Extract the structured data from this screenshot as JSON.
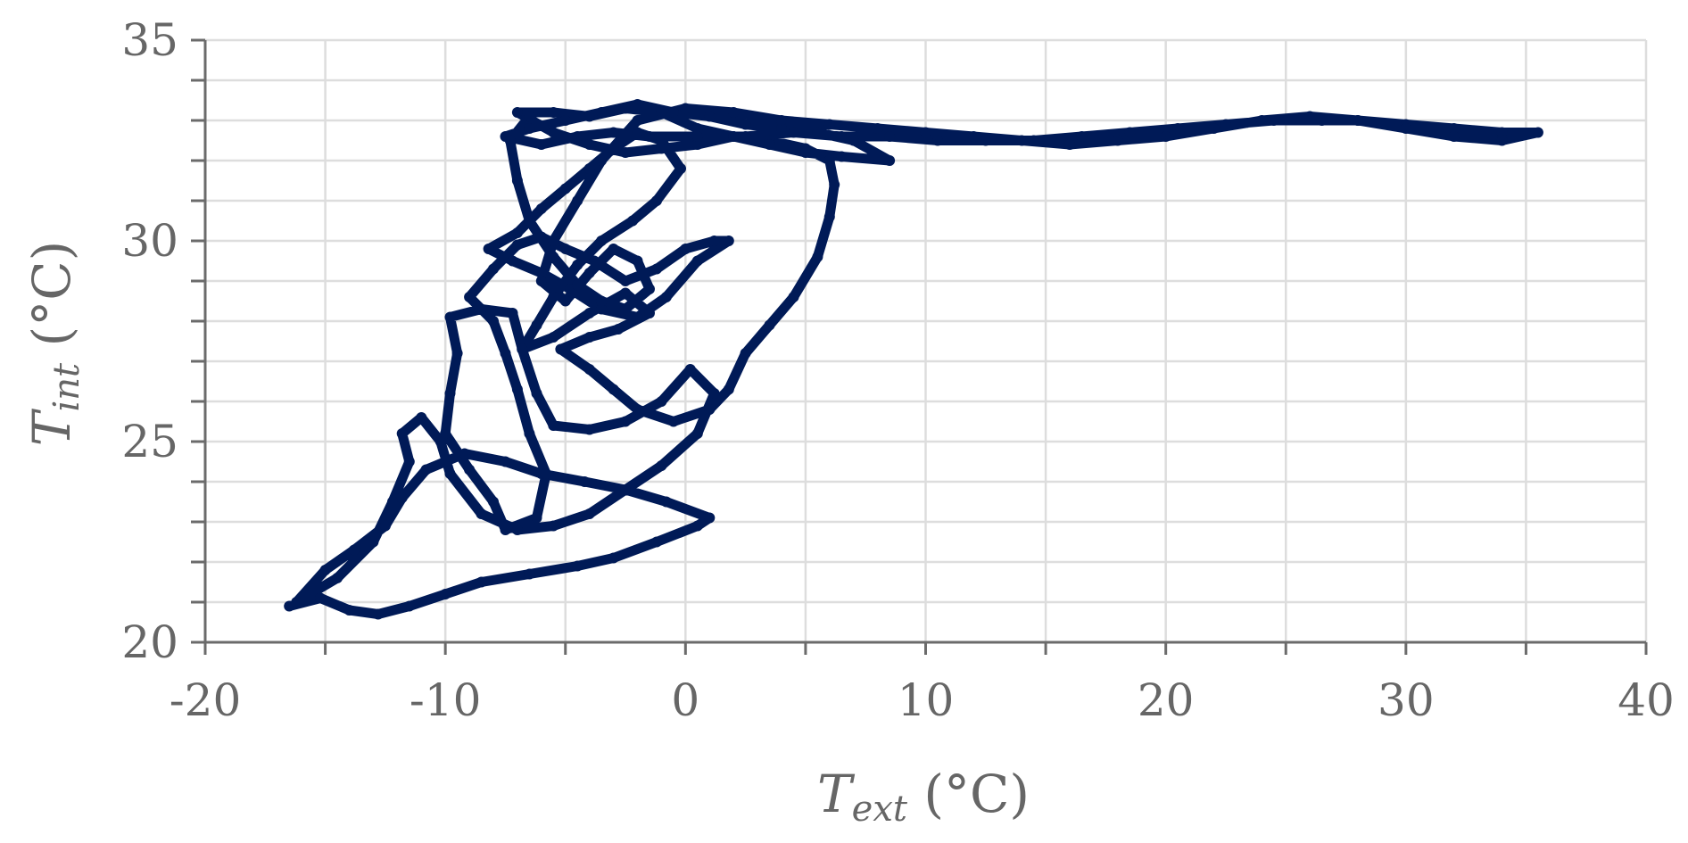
{
  "chart_data": {
    "type": "scatter",
    "xlabel": {
      "symbol": "T",
      "subscript": "ext",
      "unit": " (°C)"
    },
    "ylabel": {
      "symbol": "T",
      "subscript": "int",
      "unit": " (°C)"
    },
    "xlim": [
      -20,
      40
    ],
    "ylim": [
      20,
      35
    ],
    "x_ticks": [
      -20,
      -10,
      0,
      10,
      20,
      30,
      40
    ],
    "x_tick_labels": [
      "-20",
      "-10",
      "0",
      "10",
      "20",
      "30",
      "40"
    ],
    "y_ticks": [
      20,
      25,
      30,
      35
    ],
    "y_tick_labels": [
      "20",
      "25",
      "30",
      "35"
    ],
    "x_minor_step": 5,
    "y_minor_step": 1,
    "grid": true,
    "legend": "none",
    "colors": {
      "series": "#001a57",
      "grid": "#dddddd",
      "axis": "#6b6b6b",
      "text": "#666666"
    },
    "series": [
      {
        "points": [
          [
            -16.5,
            20.9
          ],
          [
            -15.2,
            21.1
          ],
          [
            -14.0,
            20.8
          ],
          [
            -12.8,
            20.7
          ],
          [
            -11.5,
            20.9
          ],
          [
            -10.0,
            21.2
          ],
          [
            -8.5,
            21.5
          ],
          [
            -6.5,
            21.7
          ],
          [
            -4.5,
            21.9
          ],
          [
            -3.0,
            22.1
          ],
          [
            -1.2,
            22.5
          ],
          [
            0.5,
            22.9
          ],
          [
            1.0,
            23.1
          ],
          [
            -0.8,
            23.5
          ],
          [
            -2.5,
            23.8
          ],
          [
            -4.2,
            24.0
          ],
          [
            -6.0,
            24.2
          ],
          [
            -7.5,
            24.5
          ],
          [
            -9.2,
            24.7
          ],
          [
            -10.8,
            24.3
          ],
          [
            -11.8,
            23.6
          ],
          [
            -12.5,
            22.9
          ],
          [
            -13.8,
            22.3
          ],
          [
            -15.0,
            21.8
          ],
          [
            -16.2,
            21.0
          ],
          [
            -14.5,
            21.6
          ],
          [
            -13.0,
            22.5
          ],
          [
            -12.2,
            23.5
          ],
          [
            -11.5,
            24.5
          ],
          [
            -11.8,
            25.2
          ],
          [
            -11.0,
            25.6
          ],
          [
            -10.2,
            25.0
          ],
          [
            -9.8,
            24.2
          ],
          [
            -8.5,
            23.2
          ],
          [
            -7.0,
            22.8
          ],
          [
            -5.5,
            22.9
          ],
          [
            -4.0,
            23.2
          ],
          [
            -2.5,
            23.8
          ],
          [
            -1.0,
            24.4
          ],
          [
            0.5,
            25.2
          ],
          [
            1.2,
            26.2
          ],
          [
            0.2,
            26.8
          ],
          [
            -1.0,
            26.0
          ],
          [
            -2.5,
            25.5
          ],
          [
            -4.0,
            25.3
          ],
          [
            -5.5,
            25.4
          ],
          [
            -6.2,
            26.2
          ],
          [
            -6.8,
            27.3
          ],
          [
            -7.2,
            28.2
          ],
          [
            -8.5,
            28.3
          ],
          [
            -9.8,
            28.1
          ],
          [
            -9.5,
            27.2
          ],
          [
            -9.8,
            26.2
          ],
          [
            -10.0,
            25.2
          ],
          [
            -9.0,
            24.3
          ],
          [
            -8.0,
            23.5
          ],
          [
            -7.5,
            22.8
          ],
          [
            -6.2,
            23.1
          ],
          [
            -5.8,
            24.2
          ],
          [
            -6.5,
            25.2
          ],
          [
            -7.0,
            26.3
          ],
          [
            -7.5,
            27.2
          ],
          [
            -8.0,
            28.0
          ],
          [
            -9.0,
            28.6
          ],
          [
            -8.0,
            29.3
          ],
          [
            -7.0,
            29.9
          ],
          [
            -6.0,
            30.1
          ],
          [
            -5.0,
            29.8
          ],
          [
            -3.8,
            29.5
          ],
          [
            -2.5,
            29.0
          ],
          [
            -1.2,
            29.3
          ],
          [
            0.0,
            29.8
          ],
          [
            1.2,
            30.0
          ],
          [
            1.8,
            30.0
          ],
          [
            0.5,
            29.5
          ],
          [
            -0.8,
            28.6
          ],
          [
            -2.0,
            28.1
          ],
          [
            -3.5,
            28.3
          ],
          [
            -4.8,
            28.8
          ],
          [
            -6.0,
            29.2
          ],
          [
            -7.2,
            29.5
          ],
          [
            -8.2,
            29.8
          ],
          [
            -7.0,
            30.2
          ],
          [
            -6.0,
            30.8
          ],
          [
            -5.0,
            31.3
          ],
          [
            -4.0,
            31.8
          ],
          [
            -3.0,
            32.3
          ],
          [
            -2.0,
            32.7
          ],
          [
            -1.0,
            32.5
          ],
          [
            -0.2,
            31.8
          ],
          [
            -1.2,
            31.0
          ],
          [
            -2.2,
            30.5
          ],
          [
            -3.5,
            30.0
          ],
          [
            -4.5,
            29.4
          ],
          [
            -5.5,
            28.6
          ],
          [
            -6.2,
            27.9
          ],
          [
            -6.8,
            27.3
          ],
          [
            -5.5,
            27.6
          ],
          [
            -4.0,
            28.2
          ],
          [
            -2.5,
            28.7
          ],
          [
            -1.5,
            28.2
          ],
          [
            -2.8,
            27.8
          ],
          [
            -4.0,
            27.6
          ],
          [
            -5.2,
            27.3
          ],
          [
            -4.0,
            26.8
          ],
          [
            -3.0,
            26.3
          ],
          [
            -2.0,
            25.8
          ],
          [
            -0.5,
            25.5
          ],
          [
            1.0,
            25.8
          ],
          [
            1.8,
            26.3
          ],
          [
            2.5,
            27.2
          ],
          [
            3.5,
            27.9
          ],
          [
            4.5,
            28.6
          ],
          [
            5.5,
            29.6
          ],
          [
            6.0,
            30.6
          ],
          [
            6.2,
            31.4
          ],
          [
            6.0,
            32.0
          ],
          [
            5.0,
            32.3
          ],
          [
            3.5,
            32.5
          ],
          [
            2.0,
            32.6
          ],
          [
            0.5,
            32.4
          ],
          [
            -1.0,
            32.3
          ],
          [
            -2.5,
            32.2
          ],
          [
            -4.0,
            32.4
          ],
          [
            -5.5,
            32.7
          ],
          [
            -7.0,
            33.2
          ],
          [
            -5.5,
            33.2
          ],
          [
            -4.0,
            33.1
          ],
          [
            -2.5,
            33.3
          ],
          [
            -1.0,
            33.2
          ],
          [
            0.5,
            32.8
          ],
          [
            2.0,
            32.6
          ],
          [
            3.5,
            32.4
          ],
          [
            5.0,
            32.2
          ],
          [
            6.5,
            32.1
          ],
          [
            8.5,
            32.0
          ],
          [
            7.0,
            32.5
          ],
          [
            5.5,
            32.7
          ],
          [
            4.0,
            32.8
          ],
          [
            2.5,
            32.9
          ],
          [
            1.0,
            33.1
          ],
          [
            -0.5,
            33.2
          ],
          [
            -2.0,
            33.4
          ],
          [
            -3.5,
            33.2
          ],
          [
            -5.0,
            33.0
          ],
          [
            -6.5,
            32.8
          ],
          [
            -7.5,
            32.6
          ],
          [
            -6.0,
            32.4
          ],
          [
            -4.5,
            32.6
          ],
          [
            -3.0,
            32.7
          ],
          [
            -1.5,
            32.6
          ],
          [
            0.5,
            32.6
          ],
          [
            2.5,
            32.6
          ],
          [
            4.5,
            32.7
          ],
          [
            6.5,
            32.6
          ],
          [
            8.5,
            32.6
          ],
          [
            10.5,
            32.5
          ],
          [
            12.5,
            32.5
          ],
          [
            14.5,
            32.5
          ],
          [
            16.5,
            32.6
          ],
          [
            18.5,
            32.7
          ],
          [
            20.5,
            32.8
          ],
          [
            22.5,
            32.9
          ],
          [
            24.5,
            33.0
          ],
          [
            26.5,
            33.0
          ],
          [
            28.0,
            33.0
          ],
          [
            30.0,
            32.9
          ],
          [
            32.0,
            32.8
          ],
          [
            34.0,
            32.7
          ],
          [
            35.5,
            32.7
          ],
          [
            34.0,
            32.5
          ],
          [
            32.0,
            32.6
          ],
          [
            30.0,
            32.8
          ],
          [
            28.0,
            33.0
          ],
          [
            26.0,
            33.1
          ],
          [
            24.0,
            33.0
          ],
          [
            22.0,
            32.8
          ],
          [
            20.0,
            32.6
          ],
          [
            18.0,
            32.5
          ],
          [
            16.0,
            32.4
          ],
          [
            14.0,
            32.5
          ],
          [
            12.0,
            32.6
          ],
          [
            10.0,
            32.7
          ],
          [
            8.0,
            32.8
          ],
          [
            6.0,
            32.9
          ],
          [
            4.0,
            33.0
          ],
          [
            2.0,
            33.2
          ],
          [
            0.0,
            33.3
          ],
          [
            -2.0,
            33.0
          ],
          [
            -3.5,
            32.0
          ],
          [
            -4.5,
            31.0
          ],
          [
            -5.5,
            30.0
          ],
          [
            -6.0,
            29.0
          ],
          [
            -5.0,
            28.5
          ],
          [
            -4.0,
            29.2
          ],
          [
            -3.0,
            29.8
          ],
          [
            -2.0,
            29.5
          ],
          [
            -1.5,
            28.8
          ],
          [
            -2.5,
            28.3
          ],
          [
            -3.5,
            28.5
          ],
          [
            -4.5,
            28.9
          ],
          [
            -5.5,
            29.6
          ],
          [
            -6.5,
            30.5
          ],
          [
            -7.0,
            31.5
          ],
          [
            -7.3,
            32.5
          ],
          [
            -6.5,
            33.1
          ]
        ]
      }
    ]
  }
}
